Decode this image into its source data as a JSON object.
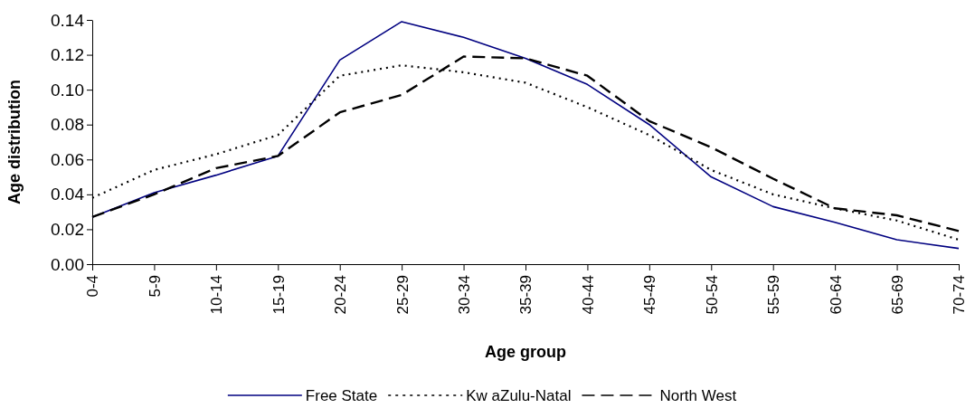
{
  "chart_data": {
    "type": "line",
    "xlabel": "Age group",
    "ylabel": "Age distribution",
    "categories": [
      "0-4",
      "5-9",
      "10-14",
      "15-19",
      "20-24",
      "25-29",
      "30-34",
      "35-39",
      "40-44",
      "45-49",
      "50-54",
      "55-59",
      "60-64",
      "65-69",
      "70-74"
    ],
    "series": [
      {
        "name": "Free State",
        "color": "#000080",
        "line_style": "solid",
        "values": [
          0.027,
          0.041,
          0.051,
          0.062,
          0.117,
          0.139,
          0.13,
          0.118,
          0.103,
          0.08,
          0.05,
          0.033,
          0.024,
          0.014,
          0.009
        ]
      },
      {
        "name": "Kw aZulu-Natal",
        "color": "#000000",
        "line_style": "dotted",
        "values": [
          0.038,
          0.054,
          0.063,
          0.074,
          0.108,
          0.114,
          0.11,
          0.104,
          0.09,
          0.074,
          0.054,
          0.04,
          0.032,
          0.025,
          0.014
        ]
      },
      {
        "name": "North West",
        "color": "#000000",
        "line_style": "dashed",
        "values": [
          0.027,
          0.04,
          0.055,
          0.062,
          0.087,
          0.097,
          0.119,
          0.118,
          0.108,
          0.082,
          0.067,
          0.049,
          0.032,
          0.028,
          0.019
        ]
      }
    ],
    "ylim": [
      0,
      0.14
    ],
    "yticks": [
      {
        "value": 0,
        "label": "0.00"
      },
      {
        "value": 0.02,
        "label": "0.02"
      },
      {
        "value": 0.04,
        "label": "0.04"
      },
      {
        "value": 0.06,
        "label": "0.06"
      },
      {
        "value": 0.08,
        "label": "0.08"
      },
      {
        "value": 0.1,
        "label": "0.10"
      },
      {
        "value": 0.12,
        "label": "0.12"
      },
      {
        "value": 0.14,
        "label": "0.14"
      }
    ],
    "legend": "bottom",
    "marker": "none"
  }
}
